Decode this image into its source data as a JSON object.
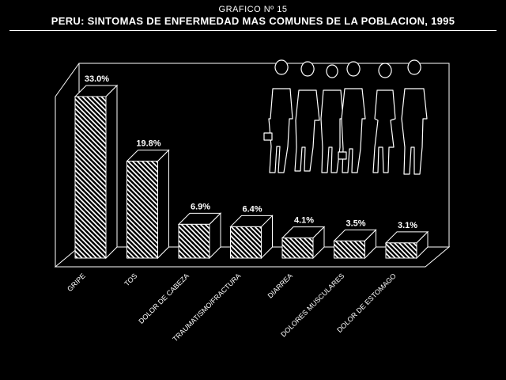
{
  "header": {
    "graph_number": "GRAFICO Nº 15",
    "title": "PERU: SINTOMAS DE ENFERMEDAD MAS COMUNES DE LA POBLACION, 1995"
  },
  "colors": {
    "background": "#000000",
    "foreground": "#ffffff"
  },
  "illustration": "people-silhouettes-icon",
  "chart_data": {
    "type": "bar",
    "style": "3d-hatched",
    "title": "PERU: SINTOMAS DE ENFERMEDAD MAS COMUNES DE LA POBLACION, 1995",
    "categories": [
      "GRIPE",
      "TOS",
      "DOLOR DE CABEZA",
      "TRAUMATISMO/FRACTURA",
      "DIARREA",
      "DOLORES MUSCULARES",
      "DOLOR DE ESTOMAGO"
    ],
    "values": [
      33.0,
      19.8,
      6.9,
      6.4,
      4.1,
      3.5,
      3.1
    ],
    "value_labels": [
      "33.0%",
      "19.8%",
      "6.9%",
      "6.4%",
      "4.1%",
      "3.5%",
      "3.1%"
    ],
    "unit": "%",
    "ylim": [
      0,
      33.0
    ],
    "grid": false,
    "legend": "none"
  }
}
